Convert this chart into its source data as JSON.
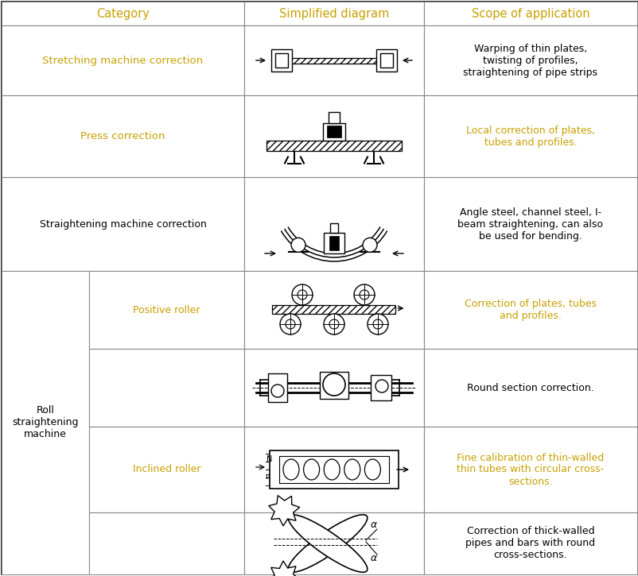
{
  "header_text_color": "#c8a000",
  "orange": "#c8a000",
  "black": "#000000",
  "border_color": "#888888",
  "bg_color": "#ffffff",
  "headers": [
    "Category",
    "Simplified diagram",
    "Scope of application"
  ],
  "scope_texts": [
    {
      "text": "Warping of thin plates,\ntwisting of profiles,\nstraightening of pipe strips",
      "color": "#000000"
    },
    {
      "text": "Local correction of plates,\ntubes and profiles.",
      "color": "#c8a000"
    },
    {
      "text": "Angle steel, channel steel, I-\nbeam straightening, can also\nbe used for bending.",
      "color": "#000000"
    },
    {
      "text": "Correction of plates, tubes\nand profiles.",
      "color": "#c8a000"
    },
    {
      "text": "Round section correction.",
      "color": "#000000"
    },
    {
      "text": "Fine calibration of thin-walled\nthin tubes with circular cross-\nsections.",
      "color": "#c8a000"
    },
    {
      "text": "Correction of thick-walled\npipes and bars with round\ncross-sections.",
      "color": "#000000"
    }
  ],
  "cat_texts": [
    {
      "text": "Stretching machine correction",
      "color": "#c8a000",
      "row": 0,
      "span": 1
    },
    {
      "text": "Press correction",
      "color": "#c8a000",
      "row": 1,
      "span": 1
    },
    {
      "text": "Straightening machine correction",
      "color": "#000000",
      "row": 2,
      "span": 1
    },
    {
      "text": "Roll\nstraightening\nmachine",
      "color": "#000000",
      "row": 3,
      "span": 4,
      "subcol": true
    },
    {
      "text": "Positive roller",
      "color": "#c8a000",
      "row": 3,
      "span": 1,
      "subcat": true
    },
    {
      "text": "Inclined roller",
      "color": "#c8a000",
      "row": 5,
      "span": 1,
      "subcat": true
    }
  ]
}
